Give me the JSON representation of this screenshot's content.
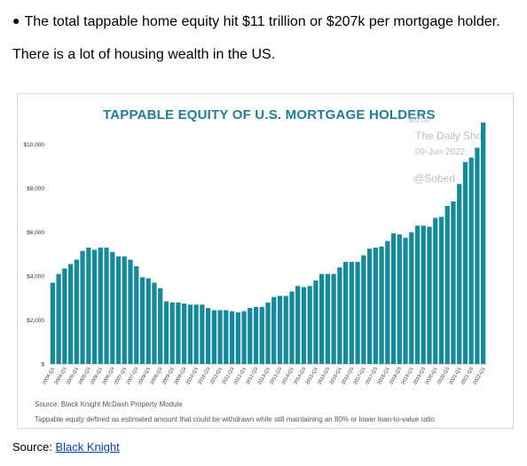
{
  "bullet_text": "The total tappable home equity hit $11 trillion or $207k per mortgage holder.",
  "intro_text": "There is a lot of housing wealth in the US.",
  "watermark": {
    "line1": "ted on",
    "line2": "The Daily Shot",
    "line3": "09-Jun-2022",
    "line4": "@Soberl"
  },
  "footnotes": {
    "source": "Source: Black Knight McDash Property Module",
    "definition": "Tappable equity defined as estimated amount that could be withdrawn while still maintaining an 80% or lower loan-to-value ratio"
  },
  "source_line": {
    "label": "Source: ",
    "link_text": "Black Knight"
  },
  "colors": {
    "bar": "#148a9c",
    "title": "#1f7f99"
  },
  "chart_data": {
    "type": "bar",
    "title": "TAPPABLE EQUITY OF U.S. MORTGAGE HOLDERS",
    "xlabel": "",
    "ylabel": "",
    "ylim": [
      0,
      11000
    ],
    "yticks": [
      0,
      2000,
      4000,
      6000,
      8000,
      10000
    ],
    "ytick_labels": [
      "$",
      "$2,000",
      "$4,000",
      "$6,000",
      "$8,000",
      "$10,000"
    ],
    "grid": false,
    "categories": [
      "2004-Q1",
      "2004-Q2",
      "2004-Q3",
      "2004-Q4",
      "2005-Q1",
      "2005-Q2",
      "2005-Q3",
      "2005-Q4",
      "2006-Q1",
      "2006-Q2",
      "2006-Q3",
      "2006-Q4",
      "2007-Q1",
      "2007-Q2",
      "2007-Q3",
      "2007-Q4",
      "2008-Q1",
      "2008-Q2",
      "2008-Q3",
      "2008-Q4",
      "2009-Q1",
      "2009-Q2",
      "2009-Q3",
      "2009-Q4",
      "2010-Q1",
      "2010-Q2",
      "2010-Q3",
      "2010-Q4",
      "2011-Q1",
      "2011-Q2",
      "2011-Q3",
      "2011-Q4",
      "2012-Q1",
      "2012-Q2",
      "2012-Q3",
      "2012-Q4",
      "2013-Q1",
      "2013-Q2",
      "2013-Q3",
      "2013-Q4",
      "2014-Q1",
      "2014-Q2",
      "2014-Q3",
      "2014-Q4",
      "2015-Q1",
      "2015-Q2",
      "2015-Q3",
      "2015-Q4",
      "2016-Q1",
      "2016-Q2",
      "2016-Q3",
      "2016-Q4",
      "2017-Q1",
      "2017-Q2",
      "2017-Q3",
      "2017-Q4",
      "2018-Q1",
      "2018-Q2",
      "2018-Q3",
      "2018-Q4",
      "2019-Q1",
      "2019-Q2",
      "2019-Q3",
      "2019-Q4",
      "2020-Q1",
      "2020-Q2",
      "2020-Q3",
      "2020-Q4",
      "2021-Q1",
      "2021-Q2",
      "2021-Q3",
      "2021-Q4",
      "2022-Q1"
    ],
    "xtick_labels": [
      "2004-Q1",
      "2004-Q3",
      "2005-Q1",
      "2005-Q3",
      "2006-Q1",
      "2006-Q3",
      "2007-Q1",
      "2007-Q3",
      "2008-Q1",
      "2008-Q3",
      "2009-Q1",
      "2009-Q3",
      "2010-Q1",
      "2010-Q3",
      "2011-Q1",
      "2011-Q3",
      "2012-Q1",
      "2012-Q3",
      "2013-Q1",
      "2013-Q3",
      "2014-Q1",
      "2014-Q3",
      "2015-Q1",
      "2015-Q3",
      "2016-Q1",
      "2016-Q3",
      "2017-Q1",
      "2017-Q3",
      "2018-Q1",
      "2018-Q3",
      "2019-Q1",
      "2019-Q3",
      "2020-Q1",
      "2020-Q3",
      "2021-Q1",
      "2021-Q3",
      "2022-Q1"
    ],
    "values": [
      3700,
      4100,
      4350,
      4550,
      4750,
      5150,
      5300,
      5200,
      5300,
      5300,
      5100,
      4900,
      4900,
      4750,
      4450,
      3950,
      3900,
      3700,
      3450,
      2850,
      2800,
      2800,
      2750,
      2700,
      2700,
      2700,
      2550,
      2450,
      2450,
      2450,
      2400,
      2350,
      2400,
      2550,
      2600,
      2600,
      2800,
      3050,
      3100,
      3100,
      3300,
      3550,
      3500,
      3550,
      3800,
      4100,
      4100,
      4100,
      4400,
      4650,
      4650,
      4650,
      4950,
      5250,
      5300,
      5350,
      5600,
      5950,
      5900,
      5750,
      6000,
      6300,
      6300,
      6250,
      6650,
      6700,
      7200,
      7400,
      8200,
      9200,
      9400,
      9850,
      11000
    ]
  }
}
